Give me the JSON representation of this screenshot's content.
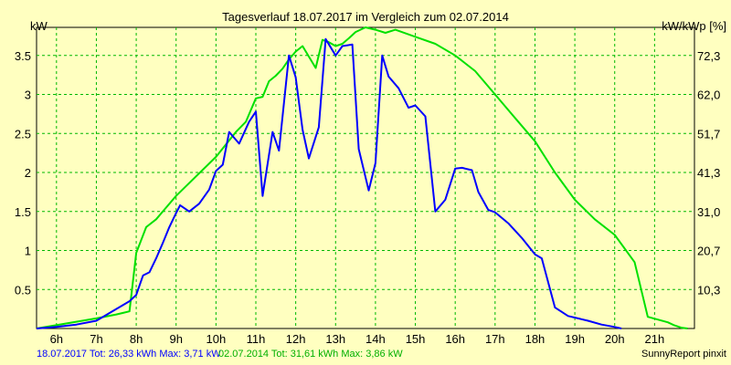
{
  "chart_data": {
    "type": "line",
    "title": "Tagesverlauf 18.07.2017 im Vergleich zum 02.07.2014",
    "ylabel_left": "kW",
    "ylabel_right": "kW/kWp [%]",
    "x_ticks": [
      "6h",
      "7h",
      "8h",
      "9h",
      "10h",
      "11h",
      "12h",
      "13h",
      "14h",
      "15h",
      "16h",
      "17h",
      "18h",
      "19h",
      "20h",
      "21h"
    ],
    "y_ticks_left": [
      "0.5",
      "1",
      "1.5",
      "2",
      "2.5",
      "3",
      "3.5"
    ],
    "y_ticks_right": [
      "10,3",
      "20,7",
      "31,0",
      "41,3",
      "51,7",
      "62,0",
      "72,3"
    ],
    "xlim": [
      5.5,
      22.0
    ],
    "ylim": [
      0,
      3.86
    ],
    "grid": true,
    "colors": {
      "background": "#ffffc0",
      "plot_background": "#ffffc0",
      "grid": "#00b800",
      "series_2017": "#0000ff",
      "series_2014": "#00e000"
    },
    "series": [
      {
        "name": "18.07.2017",
        "color": "#0000ff",
        "points": [
          [
            5.5,
            0
          ],
          [
            6.0,
            0.02
          ],
          [
            6.5,
            0.05
          ],
          [
            7.0,
            0.1
          ],
          [
            7.5,
            0.25
          ],
          [
            7.83,
            0.35
          ],
          [
            8.0,
            0.43
          ],
          [
            8.17,
            0.68
          ],
          [
            8.33,
            0.72
          ],
          [
            8.5,
            0.9
          ],
          [
            8.67,
            1.1
          ],
          [
            8.83,
            1.3
          ],
          [
            9.0,
            1.48
          ],
          [
            9.1,
            1.58
          ],
          [
            9.33,
            1.5
          ],
          [
            9.58,
            1.6
          ],
          [
            9.83,
            1.78
          ],
          [
            10.0,
            2.02
          ],
          [
            10.17,
            2.1
          ],
          [
            10.33,
            2.52
          ],
          [
            10.58,
            2.37
          ],
          [
            10.83,
            2.65
          ],
          [
            11.0,
            2.78
          ],
          [
            11.17,
            1.7
          ],
          [
            11.42,
            2.52
          ],
          [
            11.58,
            2.28
          ],
          [
            11.83,
            3.5
          ],
          [
            12.0,
            3.22
          ],
          [
            12.17,
            2.55
          ],
          [
            12.33,
            2.18
          ],
          [
            12.58,
            2.58
          ],
          [
            12.75,
            3.71
          ],
          [
            13.0,
            3.5
          ],
          [
            13.17,
            3.62
          ],
          [
            13.42,
            3.64
          ],
          [
            13.58,
            2.3
          ],
          [
            13.83,
            1.77
          ],
          [
            14.0,
            2.12
          ],
          [
            14.17,
            3.5
          ],
          [
            14.33,
            3.23
          ],
          [
            14.58,
            3.08
          ],
          [
            14.83,
            2.83
          ],
          [
            15.0,
            2.86
          ],
          [
            15.25,
            2.72
          ],
          [
            15.5,
            1.5
          ],
          [
            15.75,
            1.65
          ],
          [
            16.0,
            2.05
          ],
          [
            16.17,
            2.06
          ],
          [
            16.42,
            2.03
          ],
          [
            16.58,
            1.75
          ],
          [
            16.83,
            1.52
          ],
          [
            17.0,
            1.49
          ],
          [
            17.33,
            1.35
          ],
          [
            17.67,
            1.16
          ],
          [
            18.0,
            0.95
          ],
          [
            18.17,
            0.9
          ],
          [
            18.5,
            0.27
          ],
          [
            18.83,
            0.16
          ],
          [
            19.33,
            0.1
          ],
          [
            19.67,
            0.05
          ],
          [
            20.0,
            0.02
          ],
          [
            20.17,
            0
          ]
        ]
      },
      {
        "name": "02.07.2014",
        "color": "#00e000",
        "points": [
          [
            5.5,
            0
          ],
          [
            7.0,
            0.13
          ],
          [
            7.5,
            0.18
          ],
          [
            7.67,
            0.2
          ],
          [
            7.83,
            0.22
          ],
          [
            8.0,
            0.97
          ],
          [
            8.25,
            1.3
          ],
          [
            8.5,
            1.4
          ],
          [
            8.75,
            1.55
          ],
          [
            9.0,
            1.7
          ],
          [
            9.5,
            1.95
          ],
          [
            10.0,
            2.2
          ],
          [
            10.5,
            2.52
          ],
          [
            10.75,
            2.65
          ],
          [
            11.0,
            2.95
          ],
          [
            11.17,
            2.97
          ],
          [
            11.33,
            3.17
          ],
          [
            11.5,
            3.24
          ],
          [
            11.67,
            3.33
          ],
          [
            11.83,
            3.45
          ],
          [
            12.0,
            3.55
          ],
          [
            12.17,
            3.62
          ],
          [
            12.5,
            3.34
          ],
          [
            12.67,
            3.7
          ],
          [
            12.83,
            3.67
          ],
          [
            13.0,
            3.62
          ],
          [
            13.17,
            3.65
          ],
          [
            13.33,
            3.72
          ],
          [
            13.5,
            3.8
          ],
          [
            13.75,
            3.86
          ],
          [
            14.0,
            3.83
          ],
          [
            14.25,
            3.79
          ],
          [
            14.5,
            3.83
          ],
          [
            15.0,
            3.74
          ],
          [
            15.5,
            3.65
          ],
          [
            16.0,
            3.5
          ],
          [
            16.5,
            3.3
          ],
          [
            17.0,
            3.0
          ],
          [
            17.5,
            2.7
          ],
          [
            18.0,
            2.4
          ],
          [
            18.5,
            2.0
          ],
          [
            19.0,
            1.65
          ],
          [
            19.5,
            1.4
          ],
          [
            20.0,
            1.2
          ],
          [
            20.5,
            0.85
          ],
          [
            20.83,
            0.15
          ],
          [
            21.33,
            0.08
          ],
          [
            21.5,
            0.04
          ],
          [
            21.67,
            0.01
          ],
          [
            21.83,
            0
          ]
        ]
      }
    ]
  },
  "footer": {
    "left_stats": "18.07.2017 Tot: 26,33 kWh Max: 3,71 kW",
    "mid_stats": "02.07.2014 Tot: 31,61 kWh Max: 3,86 kW",
    "brand": "SunnyReport pinxit"
  }
}
